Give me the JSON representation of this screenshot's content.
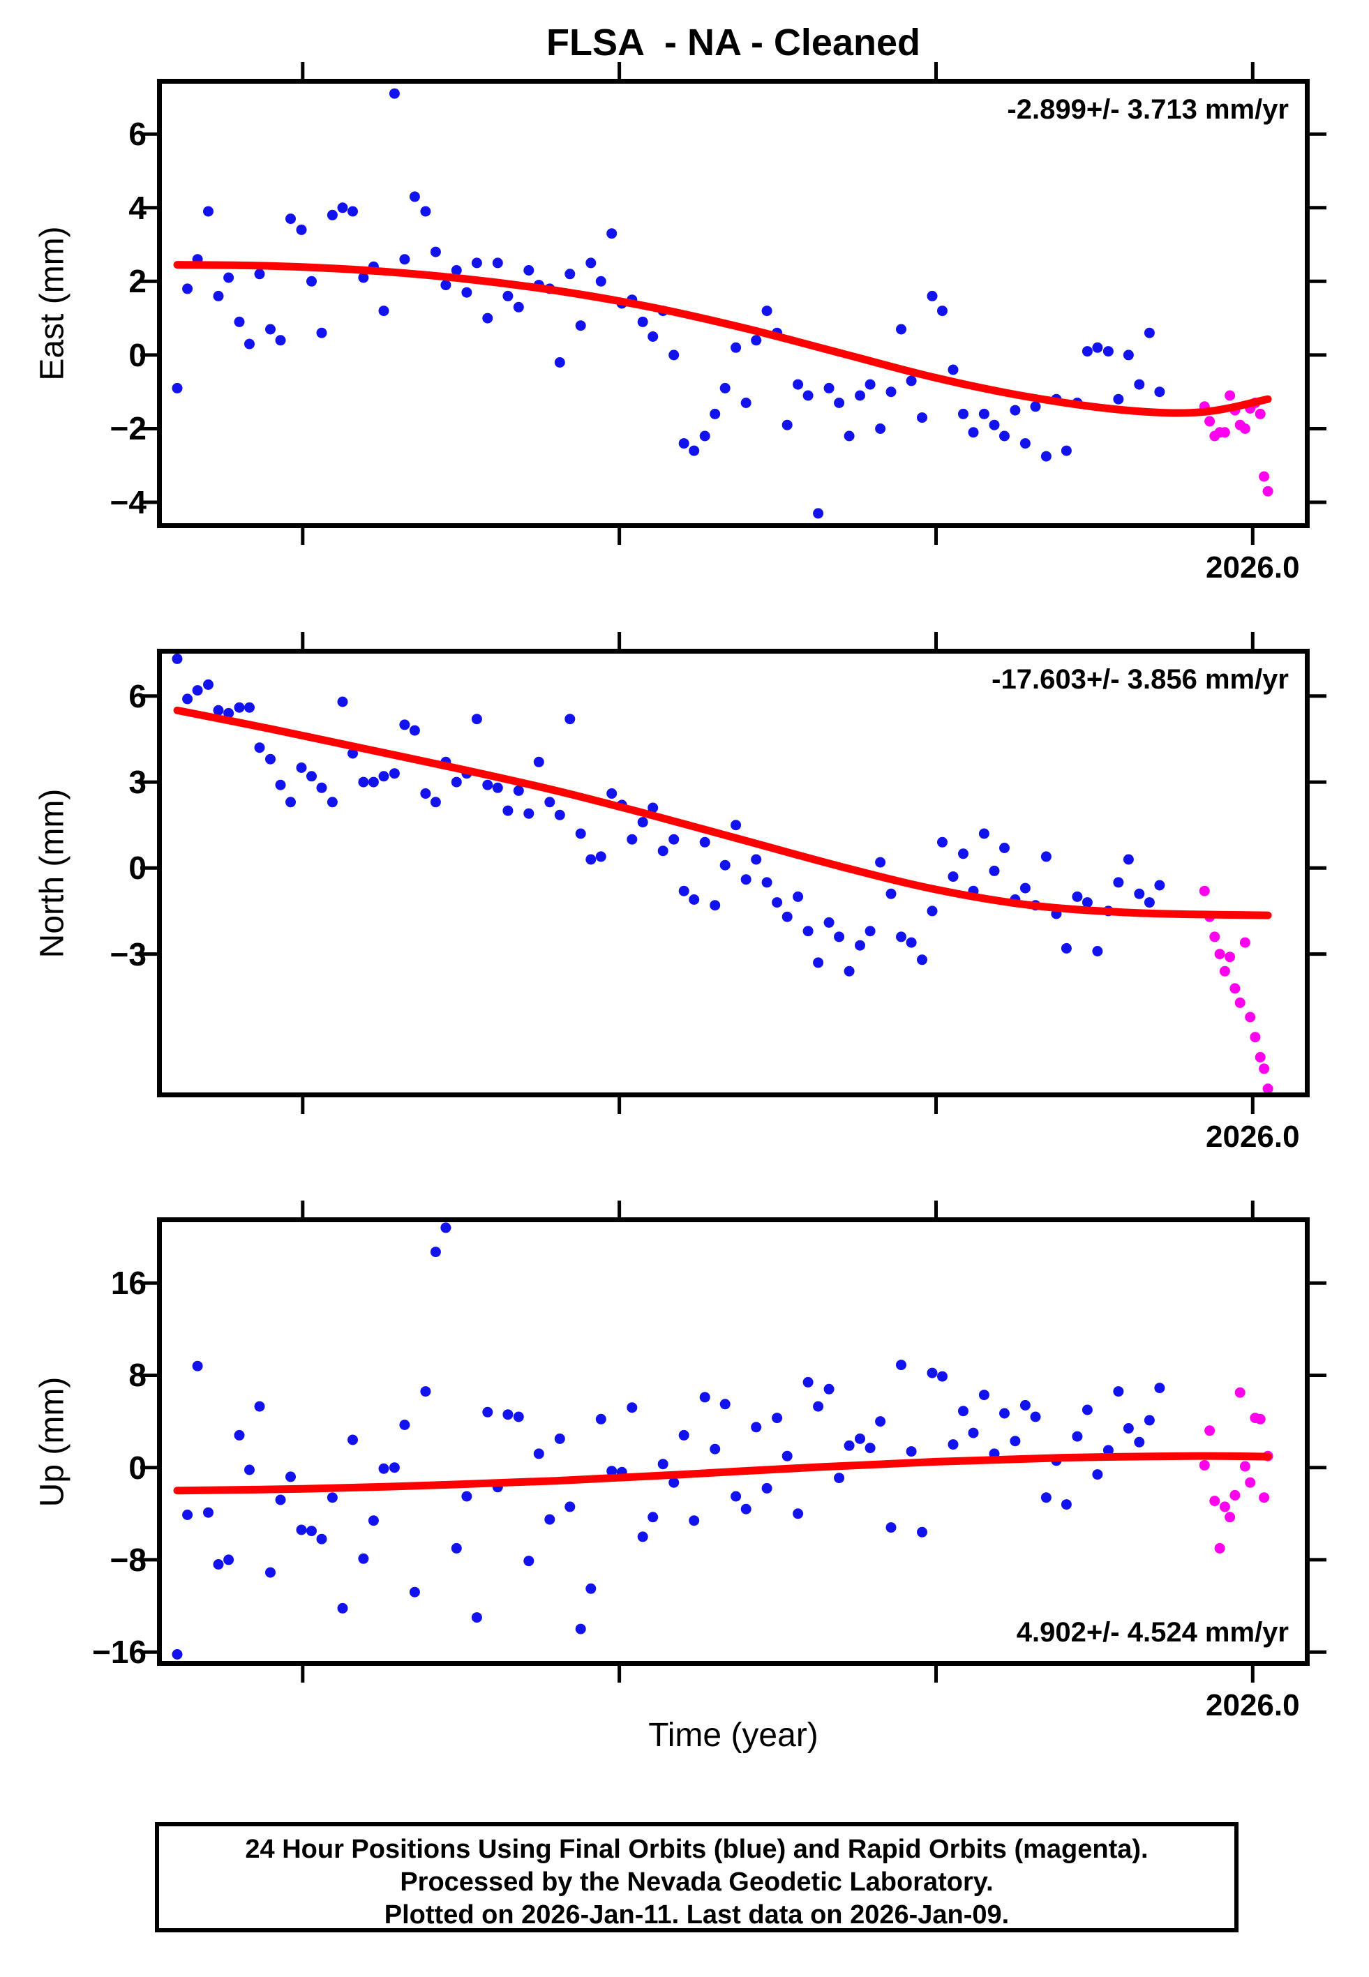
{
  "title": "FLSA  - NA - Cleaned",
  "xaxis": {
    "label": "Time (year)",
    "tick_label": "2026.0"
  },
  "caption": {
    "line1": "24 Hour Positions Using Final Orbits (blue) and Rapid Orbits (magenta).",
    "line2": "Processed by the Nevada Geodetic Laboratory.",
    "line3": "Plotted on 2026-Jan-11. Last data on 2026-Jan-09."
  },
  "colors": {
    "final_orbit_blue": "#1212ee",
    "rapid_orbit_magenta": "#ff00ee",
    "trend_red": "#ff0000",
    "axis_black": "#000000"
  },
  "legend": {
    "final_orbits": "blue",
    "rapid_orbits": "magenta"
  },
  "chart_data": {
    "type": "scatter",
    "x_label": "Time (year)",
    "xlim": [
      2024.27,
      2026.09
    ],
    "xticks": [
      2024.5,
      2025.0,
      2025.5,
      2026.0
    ],
    "xtick_labels": [
      "",
      "",
      "",
      "2026.0"
    ],
    "x_final": [
      2024.302,
      2024.318,
      2024.334,
      2024.351,
      2024.367,
      2024.383,
      2024.4,
      2024.416,
      2024.432,
      2024.449,
      2024.465,
      2024.481,
      2024.498,
      2024.514,
      2024.53,
      2024.547,
      2024.563,
      2024.579,
      2024.596,
      2024.612,
      2024.628,
      2024.645,
      2024.661,
      2024.677,
      2024.694,
      2024.71,
      2024.726,
      2024.743,
      2024.759,
      2024.775,
      2024.792,
      2024.808,
      2024.824,
      2024.841,
      2024.857,
      2024.873,
      2024.89,
      2024.906,
      2024.922,
      2024.939,
      2024.955,
      2024.971,
      2024.988,
      2025.004,
      2025.02,
      2025.037,
      2025.053,
      2025.069,
      2025.086,
      2025.102,
      2025.118,
      2025.135,
      2025.151,
      2025.167,
      2025.184,
      2025.2,
      2025.216,
      2025.233,
      2025.249,
      2025.265,
      2025.282,
      2025.298,
      2025.314,
      2025.331,
      2025.347,
      2025.363,
      2025.38,
      2025.396,
      2025.412,
      2025.429,
      2025.445,
      2025.461,
      2025.478,
      2025.494,
      2025.51,
      2025.527,
      2025.543,
      2025.559,
      2025.576,
      2025.592,
      2025.608,
      2025.625,
      2025.641,
      2025.657,
      2025.674,
      2025.69,
      2025.706,
      2025.723,
      2025.739,
      2025.755,
      2025.772,
      2025.788,
      2025.804,
      2025.821,
      2025.837,
      2025.853
    ],
    "x_rapid": [
      2025.924,
      2025.932,
      2025.94,
      2025.948,
      2025.956,
      2025.964,
      2025.972,
      2025.98,
      2025.988,
      2025.996,
      2026.004,
      2026.012,
      2026.018,
      2026.024
    ],
    "panels": [
      {
        "name": "east",
        "ylabel": "East (mm)",
        "rate_label": "-2.899+/- 3.713 mm/yr",
        "rate_position": "top-right",
        "ylim": [
          -4.7,
          7.5
        ],
        "yticks": [
          6,
          4,
          2,
          0,
          -2,
          -4
        ],
        "y_final": [
          -0.9,
          1.8,
          2.6,
          3.9,
          1.6,
          2.1,
          0.9,
          0.3,
          2.2,
          0.7,
          0.4,
          3.7,
          3.4,
          2.0,
          0.6,
          3.8,
          4.0,
          3.9,
          2.1,
          2.4,
          1.2,
          7.1,
          2.6,
          4.3,
          3.9,
          2.8,
          1.9,
          2.3,
          1.7,
          2.5,
          1.0,
          2.5,
          1.6,
          1.3,
          2.3,
          1.9,
          1.8,
          -0.2,
          2.2,
          0.8,
          2.5,
          2.0,
          3.3,
          1.4,
          1.5,
          0.9,
          0.5,
          1.2,
          0.0,
          -2.4,
          -2.6,
          -2.2,
          -1.6,
          -0.9,
          0.2,
          -1.3,
          0.4,
          1.2,
          0.6,
          -1.9,
          -0.8,
          -1.1,
          -4.3,
          -0.9,
          -1.3,
          -2.2,
          -1.1,
          -0.8,
          -2.0,
          -1.0,
          0.7,
          -0.7,
          -1.7,
          1.6,
          1.2,
          -0.4,
          -1.6,
          -2.1,
          -1.6,
          -1.9,
          -2.2,
          -1.5,
          -2.4,
          -1.4,
          -2.75,
          -1.2,
          -2.6,
          -1.3,
          0.1,
          0.2,
          0.1,
          -1.2,
          0.0,
          -0.8,
          0.6,
          -1.0
        ],
        "y_rapid": [
          -1.4,
          -1.8,
          -2.2,
          -2.1,
          -2.1,
          -1.1,
          -1.5,
          -1.9,
          -2.0,
          -1.45,
          -1.3,
          -1.6,
          -3.3,
          -3.7
        ],
        "trend": [
          [
            2024.302,
            2.45
          ],
          [
            2024.45,
            2.42
          ],
          [
            2024.6,
            2.3
          ],
          [
            2024.75,
            2.08
          ],
          [
            2024.9,
            1.75
          ],
          [
            2025.05,
            1.3
          ],
          [
            2025.2,
            0.72
          ],
          [
            2025.35,
            0.05
          ],
          [
            2025.5,
            -0.62
          ],
          [
            2025.65,
            -1.15
          ],
          [
            2025.8,
            -1.5
          ],
          [
            2025.92,
            -1.55
          ],
          [
            2026.024,
            -1.2
          ]
        ]
      },
      {
        "name": "north",
        "ylabel": "North (mm)",
        "rate_label": "-17.603+/- 3.856 mm/yr",
        "rate_position": "top-right",
        "ylim": [
          -8.0,
          7.65
        ],
        "yticks": [
          6,
          3,
          0,
          -3
        ],
        "y_final": [
          7.3,
          5.9,
          6.2,
          6.4,
          5.5,
          5.4,
          5.6,
          5.6,
          4.2,
          3.8,
          2.9,
          2.3,
          3.5,
          3.2,
          2.8,
          2.3,
          5.8,
          4.0,
          3.0,
          3.0,
          3.2,
          3.3,
          5.0,
          4.8,
          2.6,
          2.3,
          3.7,
          3.0,
          3.3,
          5.2,
          2.9,
          2.8,
          2.0,
          2.7,
          1.9,
          3.7,
          2.3,
          1.85,
          5.2,
          1.2,
          0.3,
          0.4,
          2.6,
          2.2,
          1.0,
          1.6,
          2.1,
          0.6,
          1.0,
          -0.8,
          -1.1,
          0.9,
          -1.3,
          0.1,
          1.5,
          -0.4,
          0.3,
          -0.5,
          -1.2,
          -1.7,
          -1.0,
          -2.2,
          -3.3,
          -1.9,
          -2.4,
          -3.6,
          -2.7,
          -2.2,
          0.2,
          -0.9,
          -2.4,
          -2.6,
          -3.2,
          -1.5,
          0.9,
          -0.3,
          0.5,
          -0.8,
          1.2,
          -0.1,
          0.7,
          -1.1,
          -0.7,
          -1.3,
          0.4,
          -1.6,
          -2.8,
          -1.0,
          -1.2,
          -2.9,
          -1.5,
          -0.5,
          0.3,
          -0.9,
          -1.2,
          -0.6
        ],
        "y_rapid": [
          -0.8,
          -1.7,
          -2.4,
          -3.0,
          -3.6,
          -3.1,
          -4.2,
          -4.7,
          -2.6,
          -5.2,
          -5.9,
          -6.6,
          -7.0,
          -7.7
        ],
        "trend": [
          [
            2024.302,
            5.5
          ],
          [
            2024.45,
            4.85
          ],
          [
            2024.6,
            4.15
          ],
          [
            2024.75,
            3.45
          ],
          [
            2024.9,
            2.7
          ],
          [
            2025.05,
            1.85
          ],
          [
            2025.2,
            0.95
          ],
          [
            2025.35,
            0.05
          ],
          [
            2025.5,
            -0.75
          ],
          [
            2025.65,
            -1.3
          ],
          [
            2025.8,
            -1.55
          ],
          [
            2025.92,
            -1.62
          ],
          [
            2026.024,
            -1.65
          ]
        ]
      },
      {
        "name": "up",
        "ylabel": "Up (mm)",
        "rate_label": "4.902+/- 4.524 mm/yr",
        "rate_position": "bottom-right",
        "ylim": [
          -17.2,
          21.7
        ],
        "yticks": [
          16,
          8,
          0,
          -8,
          -16
        ],
        "y_final": [
          -16.2,
          -4.1,
          8.8,
          -3.9,
          -8.4,
          -8.0,
          2.8,
          -0.2,
          5.3,
          -9.1,
          -2.8,
          -0.8,
          -5.4,
          -5.5,
          -6.2,
          -2.6,
          -12.2,
          2.4,
          -7.9,
          -4.6,
          -0.1,
          0.0,
          3.7,
          -10.8,
          6.6,
          18.7,
          20.8,
          -7.0,
          -2.5,
          -13.0,
          4.8,
          -1.7,
          4.6,
          4.4,
          -8.1,
          1.2,
          -4.5,
          2.5,
          -3.4,
          -14.0,
          -10.5,
          4.2,
          -0.3,
          -0.4,
          5.2,
          -6.0,
          -4.3,
          0.3,
          -1.3,
          2.8,
          -4.6,
          6.1,
          1.6,
          5.5,
          -2.5,
          -3.6,
          3.5,
          -1.8,
          4.3,
          1.0,
          -4.0,
          7.4,
          5.3,
          6.8,
          -0.9,
          1.9,
          2.5,
          1.7,
          4.0,
          -5.2,
          8.9,
          1.4,
          -5.6,
          8.2,
          7.9,
          2.0,
          4.9,
          3.0,
          6.3,
          1.2,
          4.7,
          2.3,
          5.4,
          4.4,
          -2.6,
          0.6,
          -3.2,
          2.7,
          5.0,
          -0.6,
          1.5,
          6.6,
          3.4,
          2.2,
          4.1,
          6.9
        ],
        "y_rapid": [
          0.2,
          3.2,
          -2.9,
          -7.0,
          -3.4,
          -4.3,
          -2.4,
          6.5,
          0.1,
          -1.3,
          4.3,
          4.2,
          -2.6,
          1.0
        ],
        "trend": [
          [
            2024.302,
            -2.0
          ],
          [
            2024.5,
            -1.85
          ],
          [
            2024.7,
            -1.55
          ],
          [
            2024.9,
            -1.15
          ],
          [
            2025.1,
            -0.6
          ],
          [
            2025.3,
            0.0
          ],
          [
            2025.5,
            0.5
          ],
          [
            2025.7,
            0.85
          ],
          [
            2025.9,
            1.0
          ],
          [
            2026.024,
            0.95
          ]
        ]
      }
    ]
  }
}
